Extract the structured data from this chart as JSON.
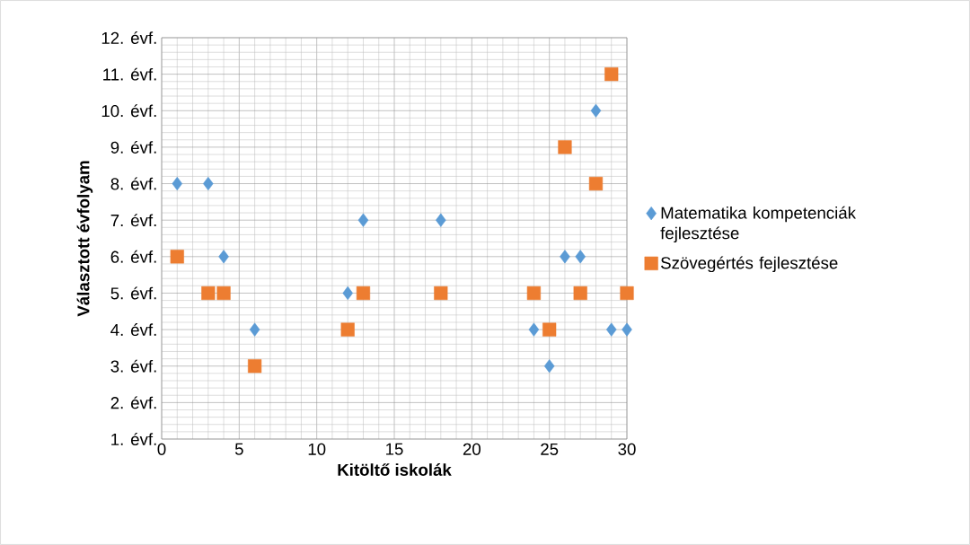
{
  "chart_data": {
    "type": "scatter",
    "xlabel": "Kitöltő iskolák",
    "ylabel": "Választott évfolyam",
    "xlim": [
      0,
      30
    ],
    "xticks": [
      0,
      5,
      10,
      15,
      20,
      25,
      30
    ],
    "ylim": [
      1,
      12
    ],
    "yticks": [
      {
        "value": 1,
        "label": "1. évf."
      },
      {
        "value": 2,
        "label": "2. évf."
      },
      {
        "value": 3,
        "label": "3. évf."
      },
      {
        "value": 4,
        "label": "4. évf."
      },
      {
        "value": 5,
        "label": "5. évf."
      },
      {
        "value": 6,
        "label": "6. évf."
      },
      {
        "value": 7,
        "label": "7. évf."
      },
      {
        "value": 8,
        "label": "8. évf."
      },
      {
        "value": 9,
        "label": "9. évf."
      },
      {
        "value": 10,
        "label": "10. évf."
      },
      {
        "value": 11,
        "label": "11. évf."
      },
      {
        "value": 12,
        "label": "12. évf."
      }
    ],
    "grid": true,
    "legend": "right",
    "series": [
      {
        "name": "Matematika kompetenciák fejlesztése",
        "color": "#5b9bd5",
        "marker": "diamond",
        "x": [
          1,
          3,
          4,
          6,
          12,
          13,
          18,
          24,
          25,
          26,
          27,
          28,
          29,
          30
        ],
        "values": [
          8,
          8,
          6,
          4,
          5,
          7,
          7,
          4,
          3,
          6,
          6,
          10,
          4,
          4
        ]
      },
      {
        "name": "Szövegértés fejlesztése",
        "color": "#ed7d31",
        "marker": "square",
        "x": [
          1,
          3,
          4,
          6,
          12,
          13,
          18,
          24,
          25,
          26,
          27,
          28,
          29,
          30
        ],
        "values": [
          6,
          5,
          5,
          3,
          4,
          5,
          5,
          5,
          4,
          9,
          5,
          8,
          11,
          5
        ]
      }
    ]
  }
}
